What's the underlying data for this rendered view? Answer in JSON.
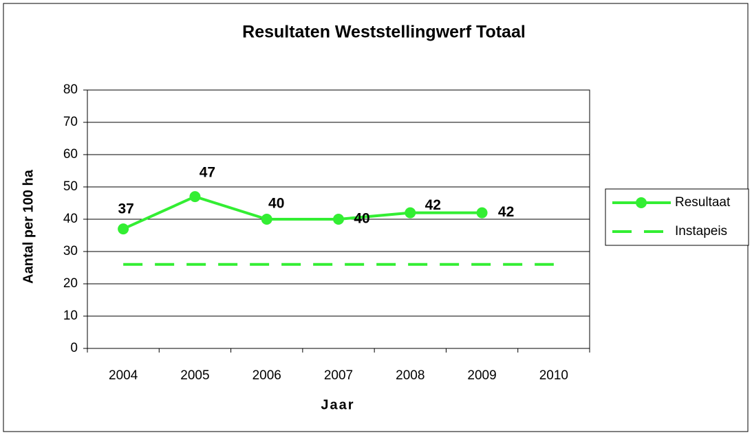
{
  "chart_data": {
    "type": "line",
    "title": "Resultaten Weststellingwerf Totaal",
    "x_label": "Jaar",
    "y_label": "Aantal per 100 ha",
    "categories": [
      "2004",
      "2005",
      "2006",
      "2007",
      "2008",
      "2009",
      "2010"
    ],
    "series": [
      {
        "name": "Resultaat",
        "color": "#33ee33",
        "style": "solid",
        "markers": true,
        "data_labels": true,
        "values": [
          37,
          47,
          40,
          40,
          42,
          42,
          null
        ]
      },
      {
        "name": "Instapeis",
        "color": "#33ee33",
        "style": "dashed",
        "markers": false,
        "data_labels": false,
        "values": [
          26,
          26,
          26,
          26,
          26,
          26,
          26
        ]
      }
    ],
    "ylim": [
      0,
      80
    ],
    "yticks": [
      0,
      10,
      20,
      30,
      40,
      50,
      60,
      70,
      80
    ],
    "grid": true,
    "legend": "right"
  }
}
